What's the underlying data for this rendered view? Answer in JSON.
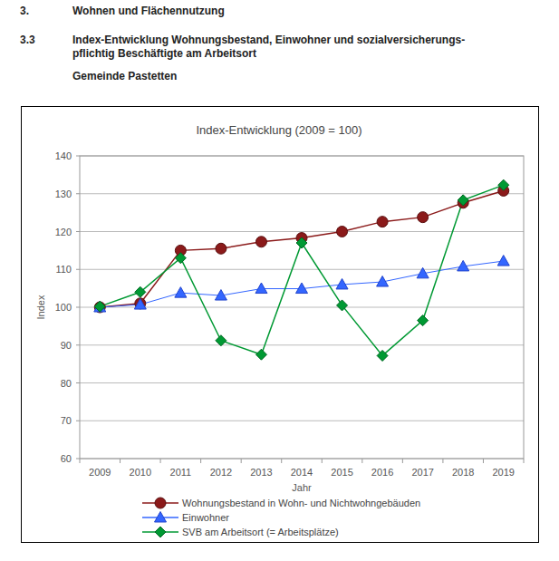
{
  "header": {
    "section_number": "3.",
    "section_title": "Wohnen und Flächennutzung",
    "subsection_number": "3.3",
    "subsection_title_lines": [
      "Index-Entwicklung Wohnungsbestand, Einwohner und sozialversicherungs-",
      "pflichtig Beschäftigte am Arbeitsort"
    ],
    "municipality": "Gemeinde Pastetten"
  },
  "chart_data": {
    "type": "line",
    "title": "Index-Entwicklung (2009 = 100)",
    "x_label": "Jahr",
    "y_label": "Index",
    "categories": [
      "2009",
      "2010",
      "2011",
      "2012",
      "2013",
      "2014",
      "2015",
      "2016",
      "2017",
      "2018",
      "2019"
    ],
    "series": [
      {
        "name": "Wohnungsbestand in Wohn- und Nichtwohngebäuden",
        "color": "#8b1a1a",
        "marker": "circle",
        "values": [
          100,
          101,
          115,
          115.5,
          117.3,
          118.3,
          120,
          122.6,
          123.8,
          127.6,
          130.8
        ]
      },
      {
        "name": "Einwohner",
        "color": "#3366ff",
        "marker": "triangle",
        "values": [
          100,
          100.7,
          103.8,
          103.1,
          104.9,
          104.9,
          106,
          106.7,
          108.9,
          110.8,
          112.2
        ]
      },
      {
        "name": "SVB am Arbeitsort (= Arbeitsplätze)",
        "color": "#009933",
        "marker": "diamond",
        "values": [
          100.2,
          104,
          113,
          91.2,
          87.5,
          117,
          100.5,
          87.2,
          96.5,
          128.3,
          132.3
        ]
      }
    ],
    "ylim": [
      60,
      140
    ],
    "yticks": [
      60,
      70,
      80,
      90,
      100,
      110,
      120,
      130,
      140
    ],
    "grid": true,
    "legend": "bottom"
  }
}
